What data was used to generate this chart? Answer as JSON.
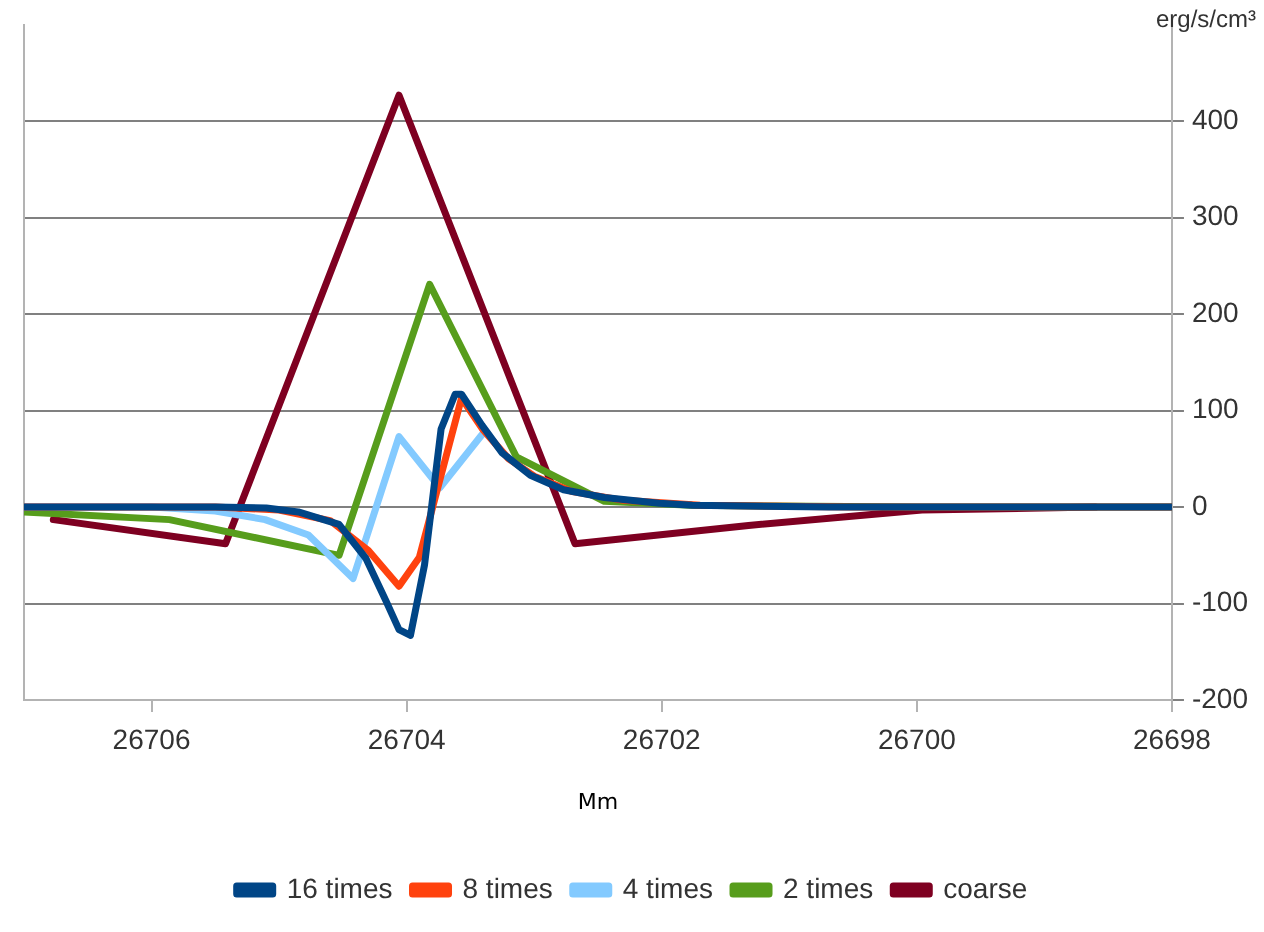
{
  "chart_data": {
    "type": "line",
    "xlabel": "Mm",
    "ylabel": "erg/s/cm³",
    "xlim": [
      26707,
      26698
    ],
    "xticks": [
      26706,
      26704,
      26702,
      26700,
      26698
    ],
    "ylim": [
      -200,
      500
    ],
    "yticks": [
      -200,
      -100,
      0,
      100,
      200,
      300,
      400
    ],
    "grid": "y",
    "legend": "bottom",
    "marker": "none",
    "line_style": "solid",
    "series": [
      {
        "name": "16 times",
        "color": "#004586",
        "x": [
          26707,
          26705.5,
          26705.1,
          26704.85,
          26704.53,
          26704.32,
          26704.16,
          26704.06,
          26703.97,
          26703.86,
          26703.73,
          26703.62,
          26703.57,
          26703.41,
          26703.25,
          26703.03,
          26702.77,
          26702.45,
          26702.02,
          26701.76,
          26700.69,
          26698
        ],
        "values": [
          0,
          0,
          -1,
          -5,
          -18,
          -53,
          -98,
          -127,
          -133,
          -60,
          81,
          117,
          117,
          85,
          56,
          33,
          18,
          10,
          4,
          2,
          0,
          0
        ]
      },
      {
        "name": "8 times",
        "color": "#ff420e",
        "x": [
          26707,
          26705.5,
          26705.0,
          26704.6,
          26704.3,
          26704.06,
          26703.9,
          26703.57,
          26703.4,
          26703.2,
          26703.0,
          26702.7,
          26702.3,
          26701.7,
          26700.5,
          26698
        ],
        "values": [
          0,
          0,
          -3,
          -14,
          -45,
          -82,
          -52,
          113,
          80,
          50,
          32,
          16,
          7,
          2,
          0,
          0
        ]
      },
      {
        "name": "4 times",
        "color": "#83caff",
        "x": [
          26707,
          26706,
          26705.5,
          26705.11,
          26704.77,
          26704.42,
          26704.06,
          26703.74,
          26703.41
        ],
        "values": [
          0,
          0,
          -4,
          -13,
          -29,
          -74,
          73,
          20,
          75
        ]
      },
      {
        "name": "2 times",
        "color": "#579d1c",
        "x": [
          26707,
          26705.86,
          26704.53,
          26703.82,
          26703.14,
          26702.45,
          26701.77,
          26701.1,
          26700,
          26698
        ],
        "values": [
          -5,
          -13,
          -50,
          231,
          52,
          6,
          2,
          1,
          0,
          0
        ]
      },
      {
        "name": "coarse",
        "color": "#7e0021",
        "x": [
          26706.77,
          26705.42,
          26704.06,
          26702.68,
          26701.32,
          26699.96,
          26698.6
        ],
        "values": [
          -13,
          -38,
          427,
          -38,
          -19,
          -3,
          0
        ]
      }
    ]
  }
}
